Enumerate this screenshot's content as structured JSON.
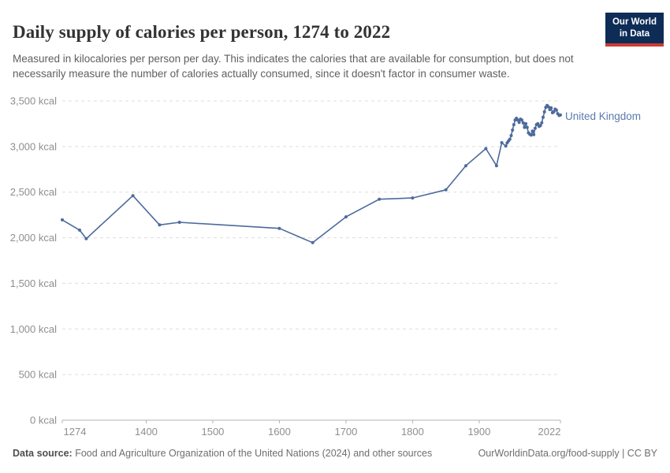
{
  "header": {
    "title": "Daily supply of calories per person, 1274 to 2022",
    "subtitle": "Measured in kilocalories per person per day. This indicates the calories that are available for consumption, but does not necessarily measure the number of calories actually consumed, since it doesn't factor in consumer waste.",
    "logo": {
      "line1": "Our World",
      "line2": "in Data",
      "bg_color": "#0d2d57",
      "accent_color": "#cf3a32"
    }
  },
  "footer": {
    "source_label": "Data source:",
    "source_text": " Food and Agriculture Organization of the United Nations (2024) and other sources",
    "credit": "OurWorldinData.org/food-supply | CC BY"
  },
  "chart_data": {
    "type": "line",
    "title": "Daily supply of calories per person, 1274 to 2022",
    "unit": "kcal",
    "xlabel": "",
    "ylabel": "",
    "xlim": [
      1274,
      2022
    ],
    "ylim": [
      0,
      3500
    ],
    "xticks": [
      1274,
      1400,
      1500,
      1600,
      1700,
      1800,
      1900,
      2022
    ],
    "ytick_values": [
      0,
      500,
      1000,
      1500,
      2000,
      2500,
      3000,
      3500
    ],
    "ytick_labels": [
      "0 kcal",
      "500 kcal",
      "1,000 kcal",
      "1,500 kcal",
      "2,000 kcal",
      "2,500 kcal",
      "3,000 kcal",
      "3,500 kcal"
    ],
    "grid": true,
    "legend_position": "end-of-line",
    "line_color": "#4C6A9C",
    "grid_color": "#dddddd",
    "axis_color": "#b3b3b3",
    "tick_text_color": "#8f8f8f",
    "series": [
      {
        "name": "United Kingdom",
        "points": [
          [
            1274,
            2196
          ],
          [
            1300,
            2084
          ],
          [
            1310,
            1989
          ],
          [
            1380,
            2461
          ],
          [
            1420,
            2141
          ],
          [
            1450,
            2169
          ],
          [
            1600,
            2103
          ],
          [
            1650,
            1946
          ],
          [
            1700,
            2229
          ],
          [
            1750,
            2422
          ],
          [
            1800,
            2436
          ],
          [
            1850,
            2525
          ],
          [
            1880,
            2790
          ],
          [
            1910,
            2977
          ],
          [
            1926,
            2790
          ],
          [
            1934,
            3042
          ],
          [
            1940,
            3005
          ],
          [
            1942,
            3040
          ],
          [
            1944,
            3060
          ],
          [
            1946,
            3080
          ],
          [
            1948,
            3120
          ],
          [
            1950,
            3180
          ],
          [
            1952,
            3240
          ],
          [
            1954,
            3290
          ],
          [
            1956,
            3310
          ],
          [
            1958,
            3290
          ],
          [
            1960,
            3265
          ],
          [
            1962,
            3300
          ],
          [
            1964,
            3290
          ],
          [
            1966,
            3260
          ],
          [
            1968,
            3210
          ],
          [
            1970,
            3250
          ],
          [
            1972,
            3210
          ],
          [
            1974,
            3150
          ],
          [
            1976,
            3135
          ],
          [
            1978,
            3125
          ],
          [
            1980,
            3170
          ],
          [
            1982,
            3130
          ],
          [
            1984,
            3200
          ],
          [
            1986,
            3240
          ],
          [
            1988,
            3250
          ],
          [
            1990,
            3220
          ],
          [
            1992,
            3230
          ],
          [
            1994,
            3260
          ],
          [
            1996,
            3320
          ],
          [
            1998,
            3380
          ],
          [
            2000,
            3430
          ],
          [
            2002,
            3450
          ],
          [
            2004,
            3435
          ],
          [
            2006,
            3405
          ],
          [
            2008,
            3425
          ],
          [
            2010,
            3370
          ],
          [
            2012,
            3380
          ],
          [
            2014,
            3410
          ],
          [
            2016,
            3400
          ],
          [
            2018,
            3360
          ],
          [
            2020,
            3340
          ],
          [
            2022,
            3345
          ]
        ]
      }
    ]
  }
}
